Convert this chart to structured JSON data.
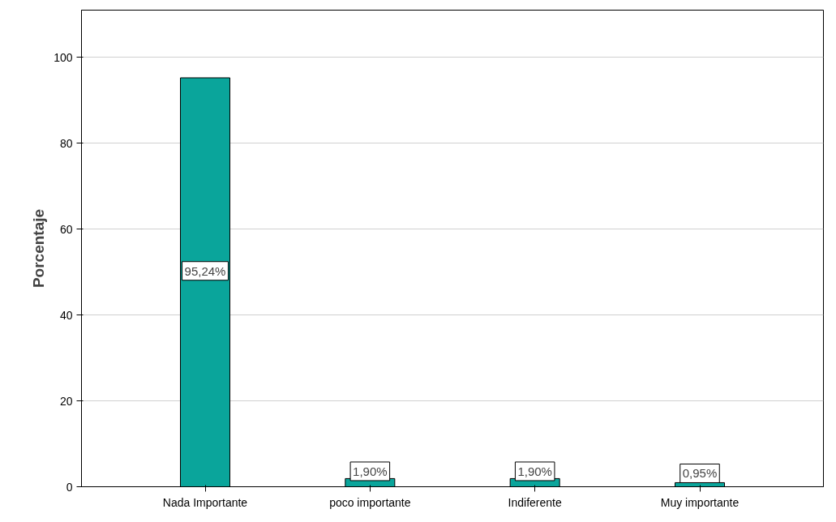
{
  "chart_data": {
    "type": "bar",
    "ylabel": "Porcentaje",
    "categories": [
      "Nada Importante",
      "poco importante",
      "Indiferente",
      "Muy importante"
    ],
    "values": [
      95.24,
      1.9,
      1.9,
      0.95
    ],
    "value_labels": [
      "95,24%",
      "1,90%",
      "1,90%",
      "0,95%"
    ],
    "color": "#0aa59b",
    "ylim": [
      0,
      111
    ],
    "yticks": [
      0,
      20,
      40,
      60,
      80,
      100
    ],
    "grid": "y"
  }
}
